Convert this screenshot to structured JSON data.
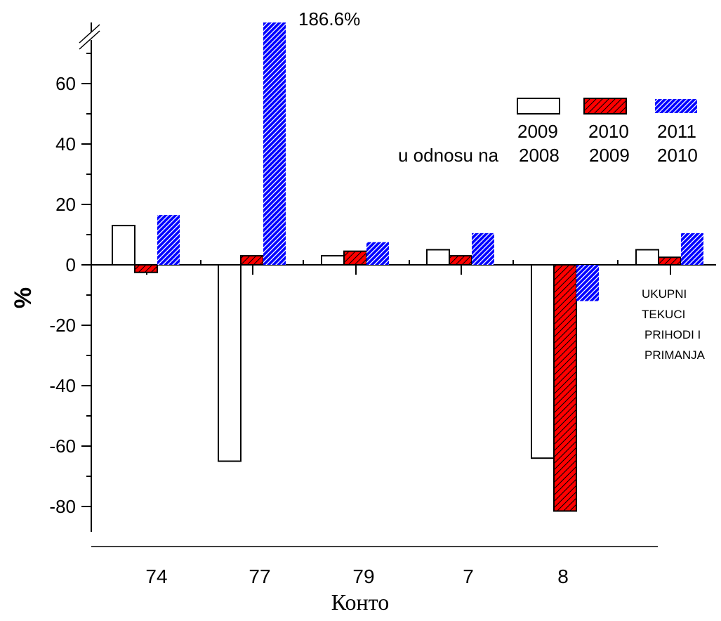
{
  "chart_data": {
    "type": "bar",
    "categories": [
      "74",
      "77",
      "79",
      "7",
      "8",
      "UKUPNI TEKUCI PRIHODI I PRIMANJA"
    ],
    "category_labels_shown": [
      "74",
      "77",
      "79",
      "7",
      "8"
    ],
    "series": [
      {
        "name": "2009",
        "color": "#ffffff",
        "pattern": "none",
        "values": [
          13,
          -65,
          3,
          5,
          -64,
          5
        ]
      },
      {
        "name": "2010",
        "color": "#ff0000",
        "pattern": "hatch",
        "values": [
          -2.5,
          3,
          4.5,
          3,
          -81.5,
          2.5
        ]
      },
      {
        "name": "2011",
        "color": "#0000ff",
        "pattern": "hatch",
        "values": [
          16.5,
          186.6,
          7.5,
          10.5,
          -12,
          10.5
        ]
      }
    ],
    "legend": {
      "years": [
        "2009",
        "2010",
        "2011"
      ],
      "relation_label": "u odnosu na",
      "base_years": [
        "2008",
        "2009",
        "2010"
      ],
      "placement": "top-right"
    },
    "annotation": "186.6%",
    "last_category_text": [
      "UKUPNI",
      "TEKUCI",
      "PRIHODI I",
      "PRIMANJA"
    ],
    "xlabel": "Конто",
    "ylabel": "%",
    "ylim": [
      -90,
      80
    ],
    "axis_break": true,
    "y_ticks": [
      60,
      40,
      20,
      0,
      -20,
      -40,
      -60,
      -80
    ],
    "y_tick_labels": [
      "60",
      "40",
      "20",
      "0",
      "-20",
      "-40",
      "-60",
      "-80"
    ],
    "grid": false
  }
}
